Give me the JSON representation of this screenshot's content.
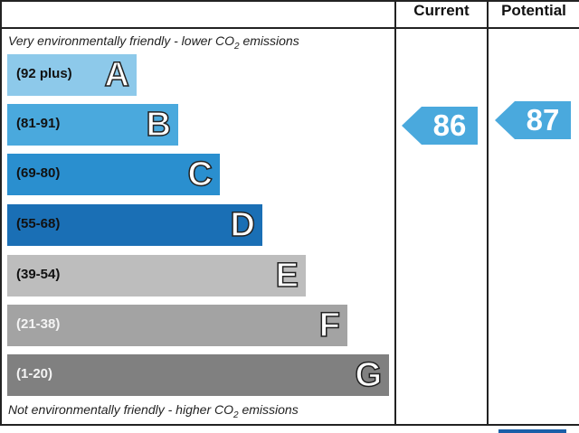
{
  "header": {
    "current": "Current",
    "potential": "Potential"
  },
  "top_note": "Very environmentally friendly - lower CO",
  "bottom_note": "Not environmentally friendly - higher CO",
  "note_subscript": "2",
  "note_suffix": " emissions",
  "chart_data": {
    "type": "bar",
    "bands": [
      {
        "letter": "A",
        "range": "(92 plus)",
        "color": "#8dc9ea"
      },
      {
        "letter": "B",
        "range": "(81-91)",
        "color": "#4aa9dd"
      },
      {
        "letter": "C",
        "range": "(69-80)",
        "color": "#2a8fcf"
      },
      {
        "letter": "D",
        "range": "(55-68)",
        "color": "#1a6fb5"
      },
      {
        "letter": "E",
        "range": "(39-54)",
        "color": "#bdbdbd"
      },
      {
        "letter": "F",
        "range": "(21-38)",
        "color": "#a3a3a3"
      },
      {
        "letter": "G",
        "range": "(1-20)",
        "color": "#808080"
      }
    ],
    "current": {
      "value": "86",
      "band": "B",
      "color": "#4aa9dd"
    },
    "potential": {
      "value": "87",
      "band": "B",
      "color": "#4aa9dd"
    }
  }
}
